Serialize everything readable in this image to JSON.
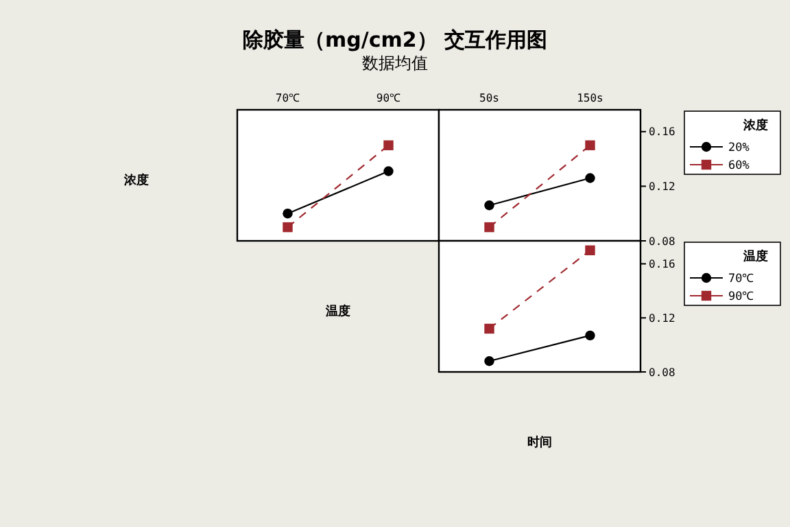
{
  "chart_data": [
    {
      "type": "line",
      "title": "除胶量（mg/cm2） 交互作用图",
      "subtitle": "数据均值",
      "ylabel": "浓度",
      "xlabel": "温度",
      "categories": [
        "70℃",
        "90℃"
      ],
      "ylim": [
        0.08,
        0.176
      ],
      "tick_labels": "x",
      "legend": false,
      "series": [
        {
          "color": "#000000",
          "marker": "circle",
          "line_style": "solid",
          "values": [
            0.1,
            0.131
          ]
        },
        {
          "color": "#a0282e",
          "marker": "square",
          "line_style": "dashed",
          "values": [
            0.09,
            0.15
          ]
        }
      ]
    },
    {
      "type": "line",
      "categories": [
        "50s",
        "150s"
      ],
      "ylim": [
        0.08,
        0.176
      ],
      "yticks": [
        0.08,
        0.12,
        0.16
      ],
      "legend": "right",
      "legend_title": "浓度",
      "series": [
        {
          "name": "20%",
          "color": "#000000",
          "marker": "circle",
          "line_style": "solid",
          "values": [
            0.106,
            0.126
          ]
        },
        {
          "name": "60%",
          "color": "#a0282e",
          "marker": "square",
          "line_style": "dashed",
          "values": [
            0.09,
            0.15
          ]
        }
      ]
    },
    {
      "type": "line",
      "xlabel": "时间",
      "categories": [
        null,
        null
      ],
      "ylim": [
        0.08,
        0.177
      ],
      "yticks": [
        0.08,
        0.12,
        0.16
      ],
      "tick_labels": "y",
      "legend": "right",
      "legend_title": "温度",
      "series": [
        {
          "name": "70℃",
          "color": "#000000",
          "marker": "circle",
          "line_style": "solid",
          "values": [
            0.088,
            0.107
          ]
        },
        {
          "name": "90℃",
          "color": "#a0282e",
          "marker": "square",
          "line_style": "dashed",
          "values": [
            0.112,
            0.17
          ]
        }
      ]
    }
  ]
}
